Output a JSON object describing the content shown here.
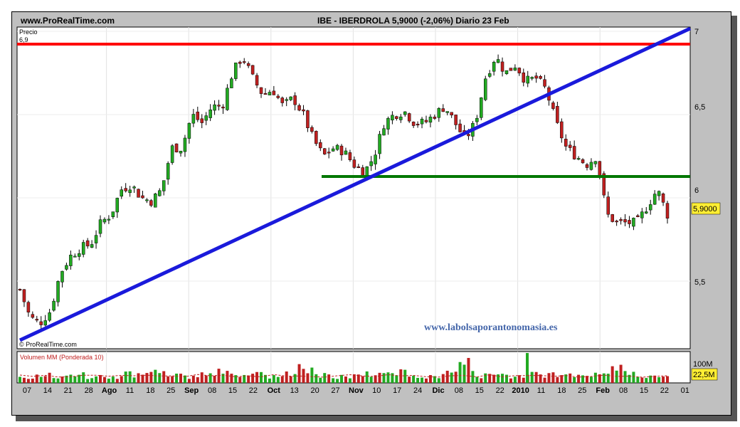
{
  "header": {
    "site": "www.ProRealTime.com",
    "title": "IBE - IBERDROLA    5,9000 (-2,06%)    Diario  23 Feb"
  },
  "price_panel": {
    "label": "Precio",
    "level_label": "6,9",
    "copyright": "© ProRealTime.com",
    "watermark": "www.labolsaporantonomasia.es",
    "last_price_badge": "5,9000",
    "y_tick_labels": [
      "7",
      "6,5",
      "6",
      "5,5"
    ]
  },
  "volume_panel": {
    "label": "Volumen MM (Ponderada 10)",
    "y_tick_label": "100M",
    "last_volume_badge": "22,5M"
  },
  "x_tick_labels": [
    "07",
    "14",
    "21",
    "28",
    "Ago",
    "11",
    "18",
    "25",
    "Sep",
    "08",
    "15",
    "22",
    "Oct",
    "13",
    "20",
    "27",
    "Nov",
    "10",
    "17",
    "24",
    "Dic",
    "08",
    "15",
    "22",
    "2010",
    "11",
    "18",
    "25",
    "Feb",
    "08",
    "15",
    "22",
    "01"
  ],
  "colors": {
    "up_candle": "#22aa22",
    "down_candle": "#c02020",
    "resistance_line": "#ff0000",
    "support_line": "#007700",
    "trend_line": "#1a1adb",
    "badge_bg": "#ffee33",
    "watermark": "#4466aa"
  },
  "chart_data": {
    "type": "candlestick",
    "title": "IBE - IBERDROLA 5,9000 (-2,06%) Diario 23 Feb",
    "ylabel": "Precio",
    "ylim": [
      5.1,
      7.1
    ],
    "y_ticks": [
      5.5,
      6.0,
      6.5,
      7.0
    ],
    "period_start": "Jul 07",
    "period_end": "Feb 23",
    "close_sample": [
      5.45,
      5.28,
      5.25,
      5.32,
      5.55,
      5.65,
      5.7,
      5.72,
      5.85,
      5.9,
      6.05,
      6.08,
      6.0,
      5.98,
      6.05,
      6.3,
      6.3,
      6.5,
      6.45,
      6.55,
      6.55,
      6.75,
      6.85,
      6.72,
      6.62,
      6.65,
      6.55,
      6.6,
      6.5,
      6.35,
      6.25,
      6.3,
      6.28,
      6.2,
      6.15,
      6.25,
      6.45,
      6.5,
      6.52,
      6.45,
      6.45,
      6.5,
      6.55,
      6.45,
      6.35,
      6.45,
      6.72,
      6.85,
      6.75,
      6.8,
      6.7,
      6.72,
      6.65,
      6.45,
      6.3,
      6.25,
      6.2,
      6.25,
      5.9,
      5.85,
      5.85,
      5.85,
      5.95,
      6.05,
      5.9
    ],
    "volume_sample": [
      30,
      40,
      35,
      45,
      30,
      25,
      50,
      40,
      55,
      35,
      30,
      45,
      60,
      50,
      40,
      35,
      45,
      70,
      40,
      30,
      35,
      45,
      40,
      50,
      35,
      40,
      45,
      100,
      40,
      35,
      30,
      45,
      40,
      35,
      30,
      40,
      70,
      45,
      35,
      40
    ],
    "annotations": {
      "resistance": 6.9,
      "support": 6.08,
      "trendline": {
        "from": [
          "Jul 07",
          5.15
        ],
        "to": [
          "Feb 23",
          7.0
        ]
      }
    },
    "volume": {
      "label": "Volumen MM (Ponderada 10)",
      "tick": "100M",
      "last": "22,5M"
    }
  }
}
